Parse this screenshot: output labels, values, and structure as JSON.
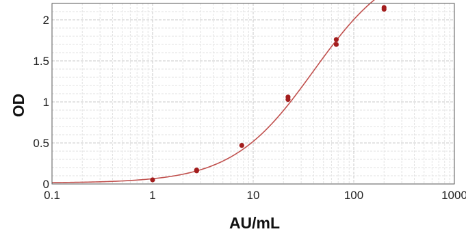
{
  "chart_data": {
    "type": "scatter",
    "title": "",
    "xlabel": "AU/mL",
    "ylabel": "OD",
    "x_scale": "log",
    "xlim": [
      0.1,
      1000
    ],
    "ylim": [
      0,
      2.2
    ],
    "x_ticks": [
      0.1,
      1,
      10,
      100,
      1000
    ],
    "x_tick_labels": [
      "0.1",
      "1",
      "10",
      "100",
      "1000"
    ],
    "y_ticks": [
      0,
      0.5,
      1,
      1.5,
      2
    ],
    "y_tick_labels": [
      "0",
      "0.5",
      "1",
      "1.5",
      "2"
    ],
    "grid": true,
    "legend": "none",
    "points": [
      {
        "x": 1,
        "y": 0.05
      },
      {
        "x": 2.74,
        "y": 0.17
      },
      {
        "x": 2.74,
        "y": 0.16
      },
      {
        "x": 7.7,
        "y": 0.47
      },
      {
        "x": 22.2,
        "y": 1.06
      },
      {
        "x": 22.2,
        "y": 1.03
      },
      {
        "x": 67,
        "y": 1.76
      },
      {
        "x": 67,
        "y": 1.7
      },
      {
        "x": 200,
        "y": 2.15
      },
      {
        "x": 200,
        "y": 2.13
      }
    ],
    "fit_curve": {
      "model": "4PL",
      "bottom": 0.012,
      "top": 2.75,
      "ec50": 40,
      "hill": 1.07,
      "x_range": [
        0.1,
        280
      ]
    },
    "colors": {
      "curve": "#c0504d",
      "points": "#a31d1d",
      "grid_major": "#c8c8c8",
      "grid_minor": "#e2e2e2",
      "frame": "#555555"
    }
  }
}
